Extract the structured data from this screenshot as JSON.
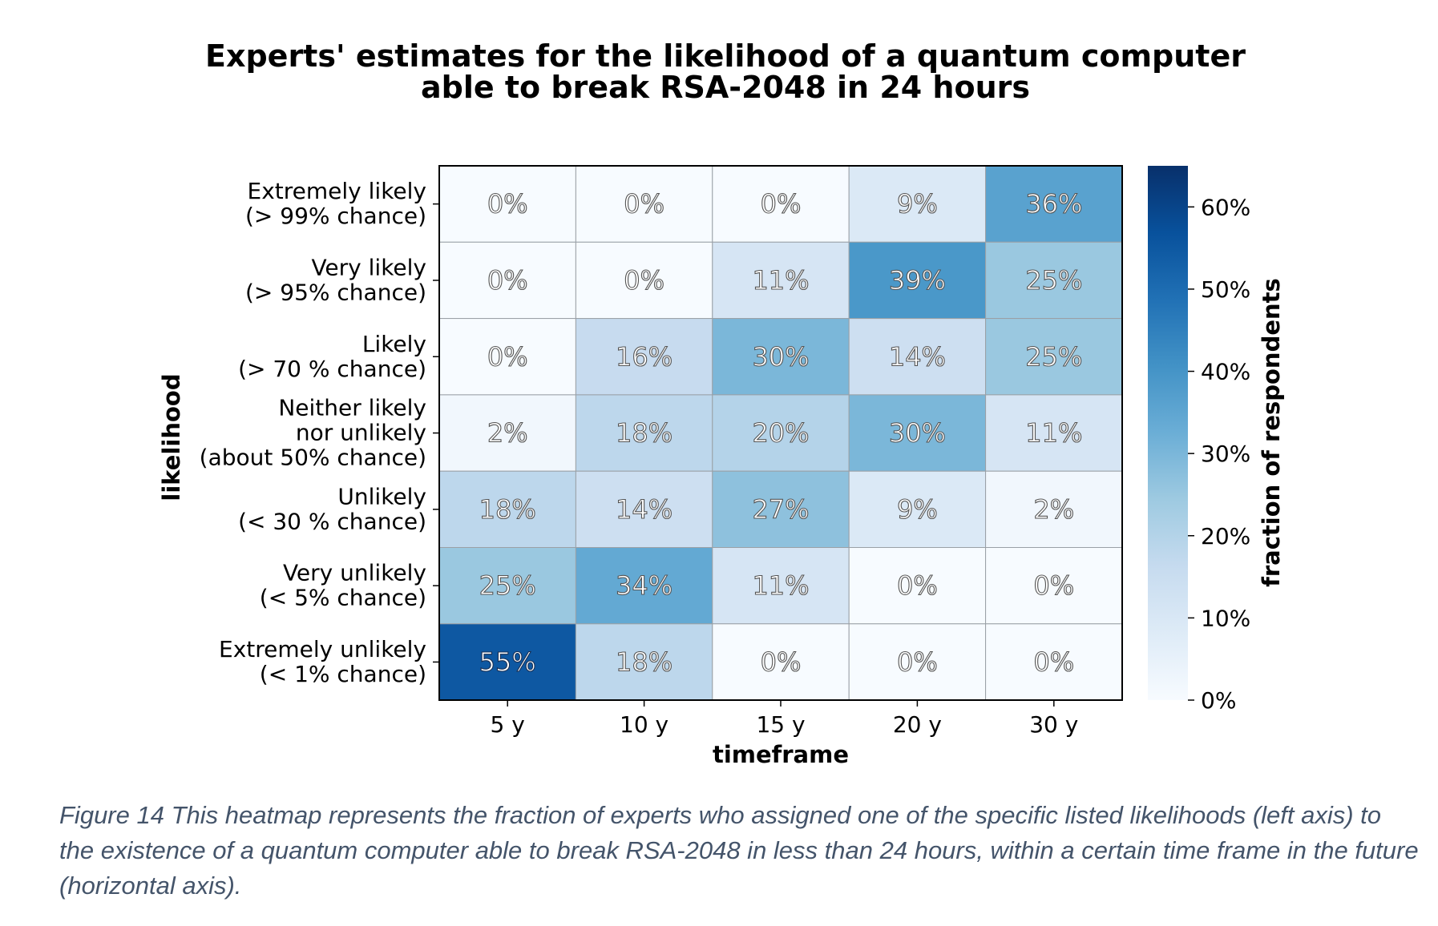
{
  "chart_data": {
    "type": "heatmap",
    "title": [
      "Experts' estimates for the likelihood of a quantum computer",
      "able to break RSA-2048 in 24 hours"
    ],
    "xlabel": "timeframe",
    "ylabel": "likelihood",
    "x_categories": [
      "5 y",
      "10 y",
      "15 y",
      "20 y",
      "30 y"
    ],
    "y_categories": [
      [
        "Extremely likely",
        "(> 99% chance)"
      ],
      [
        "Very likely",
        "(> 95% chance)"
      ],
      [
        "Likely",
        "(> 70 % chance)"
      ],
      [
        "Neither likely",
        "nor unlikely",
        "(about 50% chance)"
      ],
      [
        "Unlikely",
        "(< 30 % chance)"
      ],
      [
        "Very unlikely",
        "(< 5% chance)"
      ],
      [
        "Extremely unlikely",
        "(< 1% chance)"
      ]
    ],
    "values": [
      [
        0,
        0,
        0,
        9,
        36
      ],
      [
        0,
        0,
        11,
        39,
        25
      ],
      [
        0,
        16,
        30,
        14,
        25
      ],
      [
        2,
        18,
        20,
        30,
        11
      ],
      [
        18,
        14,
        27,
        9,
        2
      ],
      [
        25,
        34,
        11,
        0,
        0
      ],
      [
        55,
        18,
        0,
        0,
        0
      ]
    ],
    "value_format": "percent",
    "colormap": "Blues",
    "colorbar": {
      "label": "fraction of respondents",
      "range": [
        0,
        65
      ],
      "ticks": [
        0,
        10,
        20,
        30,
        40,
        50,
        60
      ],
      "tick_labels": [
        "0%",
        "10%",
        "20%",
        "30%",
        "40%",
        "50%",
        "60%"
      ]
    }
  },
  "caption": "Figure 14 This heatmap represents the fraction of experts who assigned one of the specific listed likelihoods (left axis) to the existence of a quantum computer able to break RSA-2048 in less than 24 hours, within a certain time frame in the future (horizontal axis)."
}
